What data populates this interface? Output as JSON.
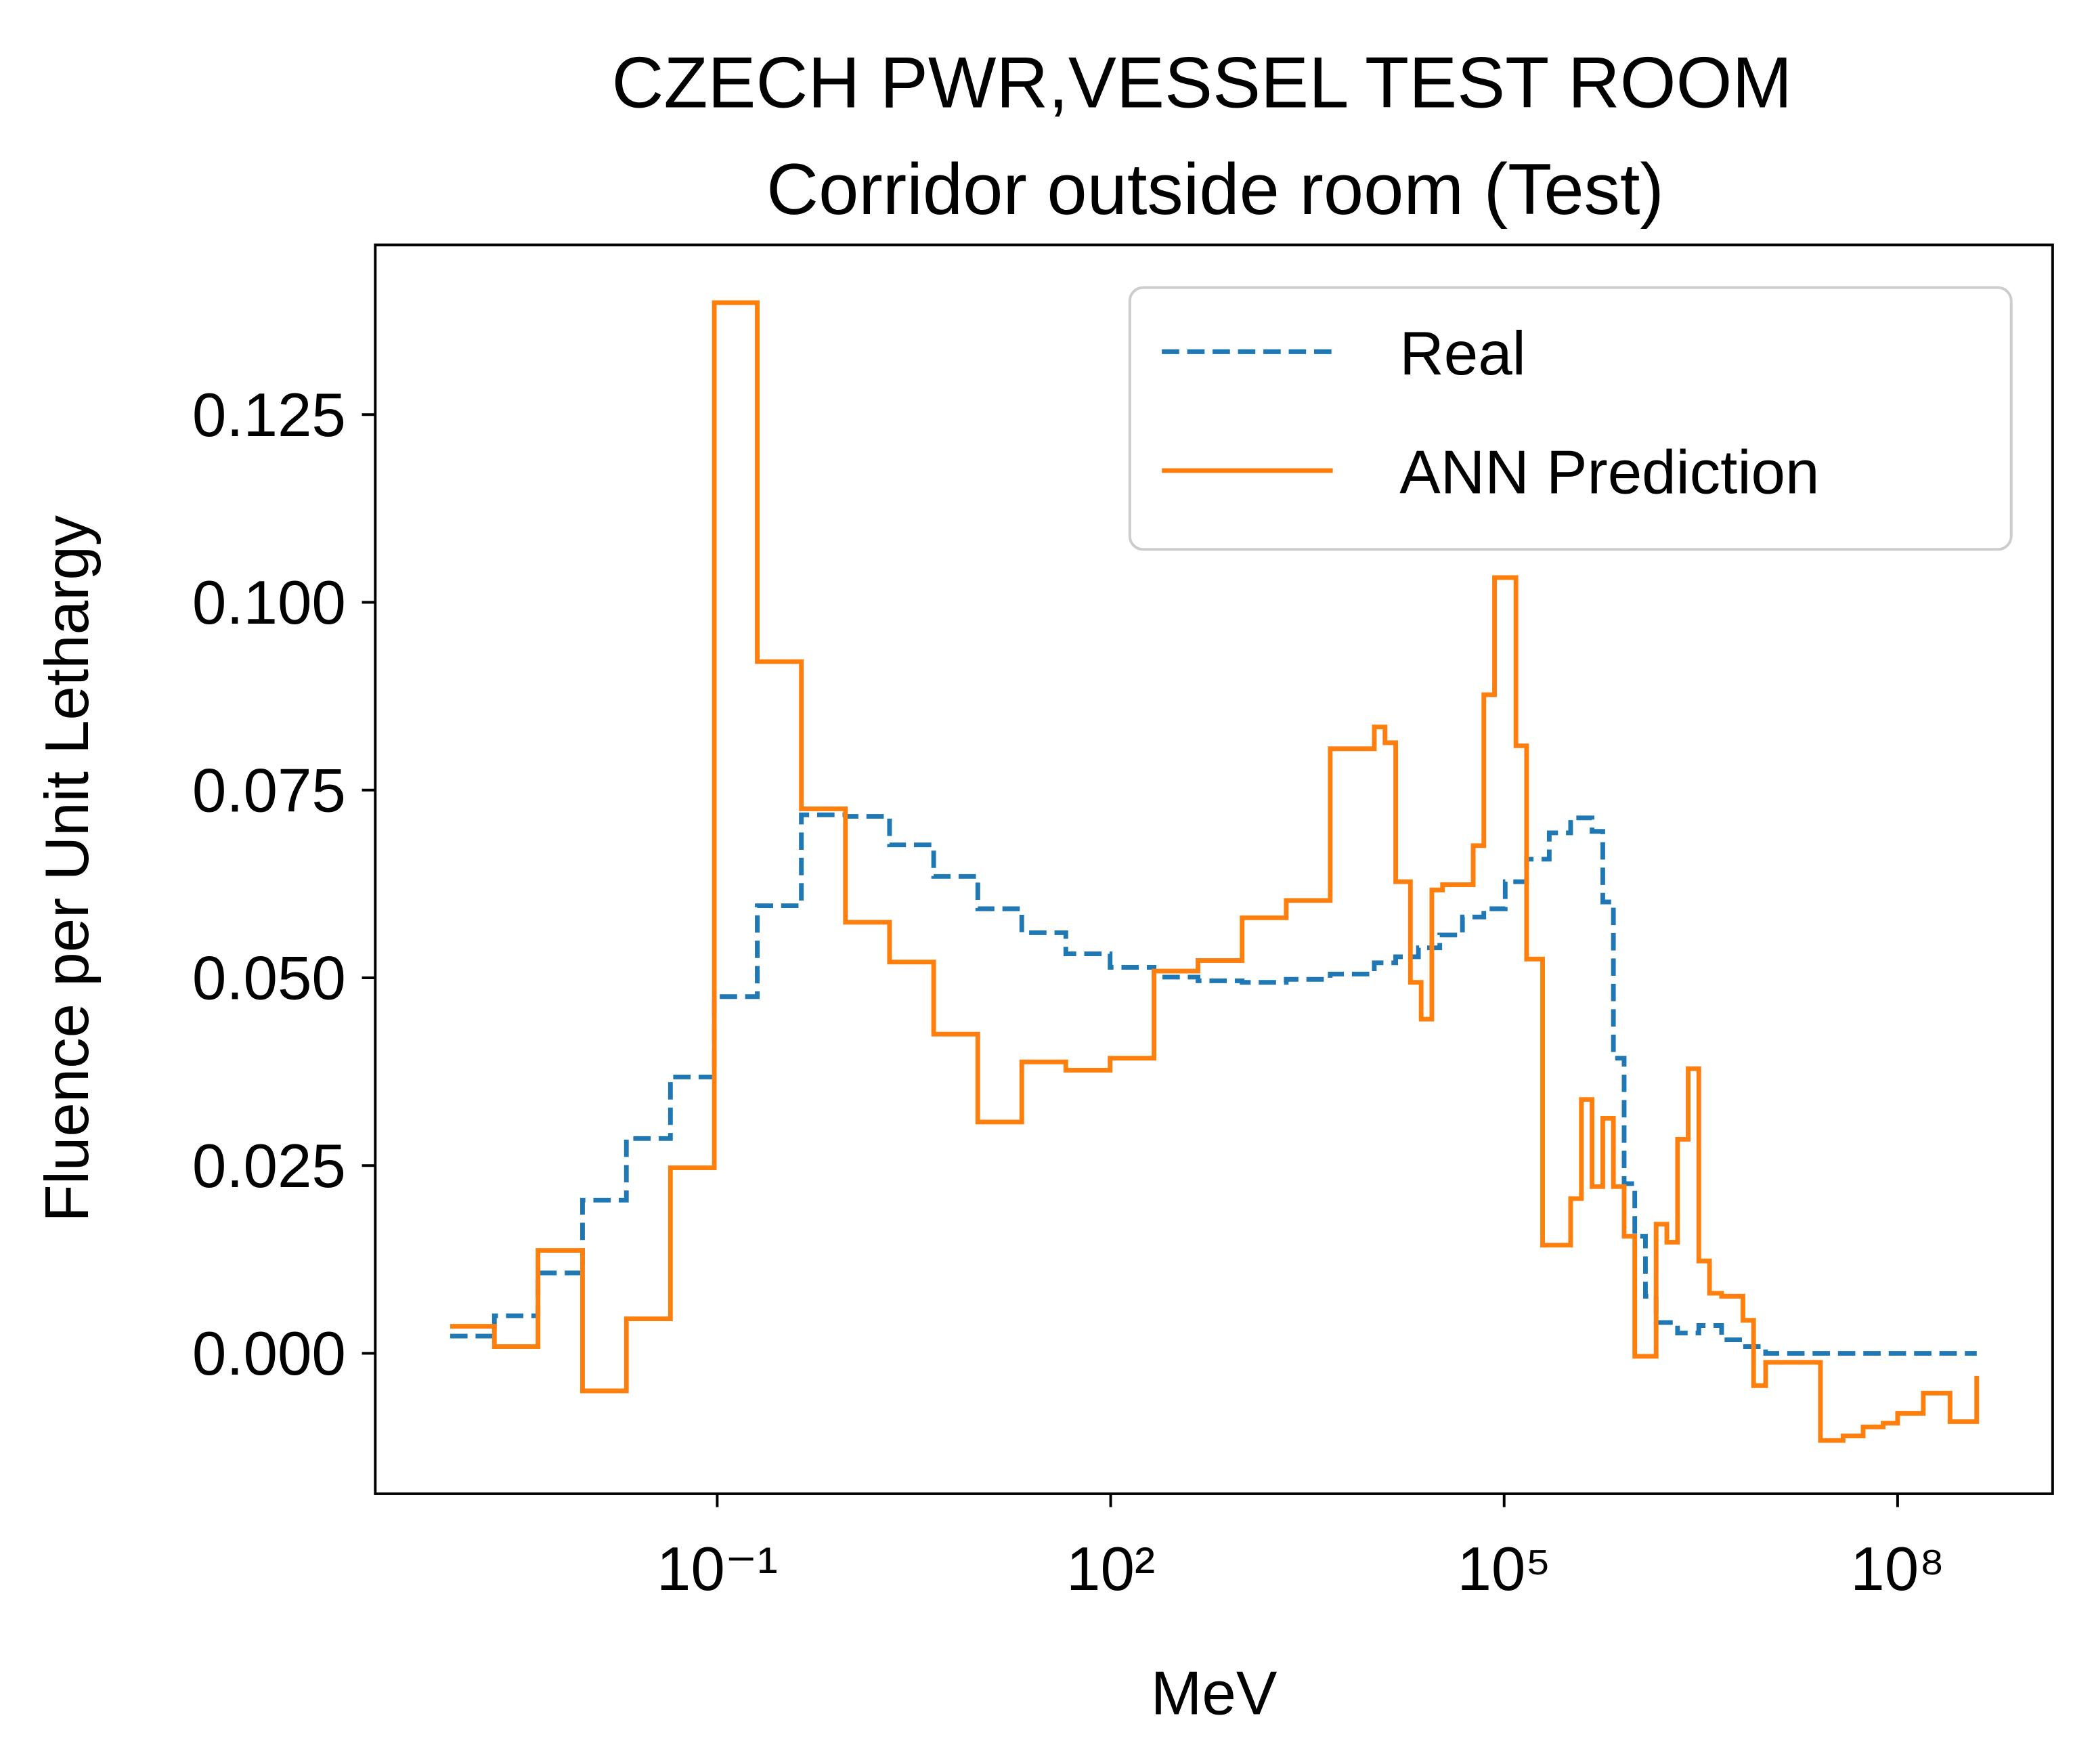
{
  "chart_data": {
    "type": "line",
    "step": "post",
    "title": "CZECH PWR,VESSEL TEST ROOM",
    "subtitle": "Corridor outside room (Test)",
    "x_label": "MeV",
    "y_label": "Fluence per Unit Lethargy",
    "xscale": "log",
    "xlim": [
      0.000247,
      1520000000
    ],
    "ylim": [
      -0.0187,
      0.1476
    ],
    "xticks": [
      {
        "value": 0.1,
        "label": "10⁻¹"
      },
      {
        "value": 100,
        "label": "10²"
      },
      {
        "value": 100000,
        "label": "10⁵"
      },
      {
        "value": 100000000,
        "label": "10⁸"
      }
    ],
    "yticks": [
      {
        "value": 0,
        "label": "0.000"
      },
      {
        "value": 0.025,
        "label": "0.025"
      },
      {
        "value": 0.05,
        "label": "0.050"
      },
      {
        "value": 0.075,
        "label": "0.075"
      },
      {
        "value": 0.1,
        "label": "0.100"
      },
      {
        "value": 0.125,
        "label": "0.125"
      }
    ],
    "legend": "upper right",
    "series": [
      {
        "name": "Real",
        "color": "#1f77b4",
        "linestyle": "dashed",
        "x": [
          0.00092,
          0.002,
          0.0043,
          0.0094,
          0.0203,
          0.044,
          0.095,
          0.202,
          0.438,
          0.95,
          2.06,
          4.47,
          9.7,
          21,
          45.5,
          99,
          214,
          463,
          1005,
          2180,
          4720,
          10230,
          14900,
          22200,
          32300,
          48100,
          70000,
          101900,
          148300,
          220800,
          321300,
          468000,
          565000,
          681000,
          822000,
          991000,
          1195000,
          1442000,
          2100000,
          3050000,
          4550000,
          6620000,
          9860000,
          401000000
        ],
        "values": [
          0.0023,
          0.005,
          0.0107,
          0.0204,
          0.0286,
          0.0368,
          0.0475,
          0.0596,
          0.0717,
          0.0715,
          0.0677,
          0.0635,
          0.0592,
          0.056,
          0.0532,
          0.0514,
          0.0501,
          0.0496,
          0.0494,
          0.0498,
          0.0505,
          0.052,
          0.0528,
          0.054,
          0.0557,
          0.0581,
          0.0592,
          0.0628,
          0.0658,
          0.0693,
          0.0713,
          0.0695,
          0.0601,
          0.0393,
          0.0226,
          0.0156,
          0.0076,
          0.0041,
          0.0027,
          0.0037,
          0.0018,
          0.0009,
          0,
          0
        ]
      },
      {
        "name": "ANN Prediction",
        "color": "#ff7f0e",
        "linestyle": "solid",
        "x": [
          0.00092,
          0.002,
          0.0043,
          0.0094,
          0.0203,
          0.044,
          0.095,
          0.202,
          0.438,
          0.95,
          2.06,
          4.47,
          9.7,
          21,
          45.5,
          99,
          214,
          463,
          1005,
          2180,
          4720,
          10230,
          12350,
          14900,
          19300,
          23300,
          28100,
          33900,
          58100,
          70000,
          84500,
          123000,
          148300,
          196400,
          321300,
          388000,
          468000,
          565000,
          681000,
          822000,
          991000,
          1442000,
          1740000,
          2100000,
          2530000,
          3050000,
          3680000,
          4550000,
          6620000,
          7980000,
          9860000,
          25800000,
          38400000,
          54600000,
          77600000,
          100000000,
          157000000,
          251000000,
          401000000
        ],
        "values": [
          0.0036,
          0.0009,
          0.0137,
          -0.005,
          0.0046,
          0.0247,
          0.1399,
          0.0921,
          0.0725,
          0.0574,
          0.0521,
          0.0425,
          0.0308,
          0.0388,
          0.0377,
          0.0393,
          0.0509,
          0.0523,
          0.058,
          0.0603,
          0.0805,
          0.0834,
          0.0813,
          0.0628,
          0.0494,
          0.0445,
          0.0617,
          0.0624,
          0.0676,
          0.0877,
          0.1033,
          0.0809,
          0.0525,
          0.0144,
          0.0206,
          0.0338,
          0.0222,
          0.0313,
          0.0222,
          0.0156,
          -0.0004,
          0.0172,
          0.0148,
          0.0285,
          0.0379,
          0.0123,
          0.008,
          0.0076,
          0.0044,
          -0.0043,
          -0.0012,
          -0.0116,
          -0.011,
          -0.0098,
          -0.0093,
          -0.008,
          -0.0053,
          -0.0091,
          -0.003
        ]
      }
    ]
  }
}
